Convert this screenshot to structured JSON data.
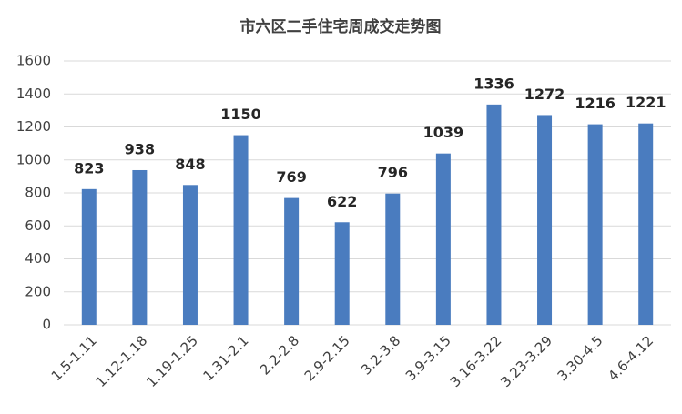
{
  "chart_data": {
    "type": "bar",
    "title": "市六区二手住宅周成交走势图",
    "categories": [
      "1.5-1.11",
      "1.12-1.18",
      "1.19-1.25",
      "1.31-2.1",
      "2.2-2.8",
      "2.9-2.15",
      "3.2-3.8",
      "3.9-3.15",
      "3.16-3.22",
      "3.23-3.29",
      "3.30-4.5",
      "4.6-4.12"
    ],
    "values": [
      823,
      938,
      848,
      1150,
      769,
      622,
      796,
      1039,
      1336,
      1272,
      1216,
      1221
    ],
    "color": "#4a7cbf",
    "ylim": [
      0,
      1600
    ],
    "yticks": [
      0,
      200,
      400,
      600,
      800,
      1000,
      1200,
      1400,
      1600
    ],
    "grid": true
  }
}
